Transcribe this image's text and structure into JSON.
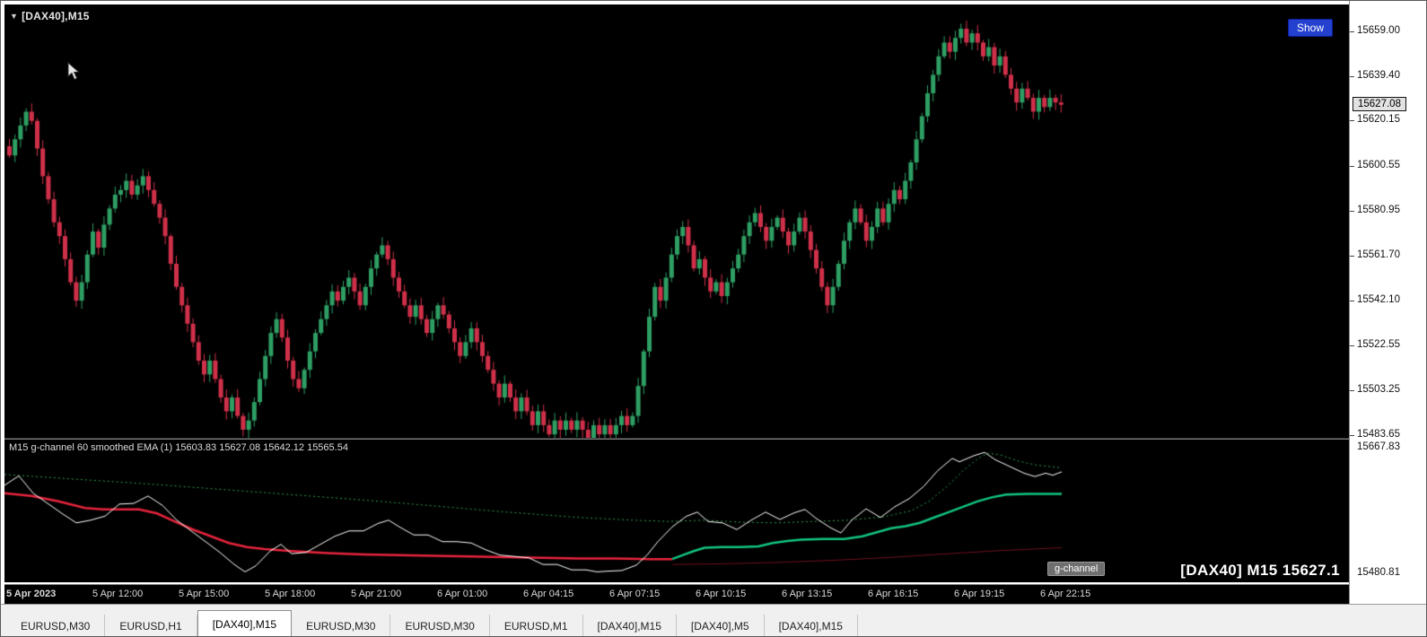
{
  "window": {
    "symbol_label": "[DAX40],M15"
  },
  "chart": {
    "show_button_label": "Show",
    "current_price_label": "15627.08",
    "current_price_value": 15627.08,
    "price_axis_ticks": [
      {
        "label": "15659.00",
        "value": 15659.0
      },
      {
        "label": "15639.40",
        "value": 15639.4
      },
      {
        "label": "15620.15",
        "value": 15620.15
      },
      {
        "label": "15600.55",
        "value": 15600.55
      },
      {
        "label": "15580.95",
        "value": 15580.95
      },
      {
        "label": "15561.70",
        "value": 15561.7
      },
      {
        "label": "15542.10",
        "value": 15542.1
      },
      {
        "label": "15522.55",
        "value": 15522.55
      },
      {
        "label": "15503.25",
        "value": 15503.25
      },
      {
        "label": "15483.65",
        "value": 15483.65
      }
    ]
  },
  "indicator": {
    "label": "M15 g-channel  60 smoothed EMA (1) 15603.83 15627.08 15642.12 15565.54",
    "axis_ticks": [
      {
        "label": "15667.83",
        "value": 15667.83
      },
      {
        "label": "15480.81",
        "value": 15480.81
      }
    ],
    "tooltip": "g-channel",
    "watermark": "[DAX40] M15 15627.1"
  },
  "time_axis": {
    "labels": [
      "5 Apr 2023",
      "5 Apr 12:00",
      "5 Apr 15:00",
      "5 Apr 18:00",
      "5 Apr 21:00",
      "6 Apr 01:00",
      "6 Apr 04:15",
      "6 Apr 07:15",
      "6 Apr 10:15",
      "6 Apr 13:15",
      "6 Apr 16:15",
      "6 Apr 19:15",
      "6 Apr 22:15"
    ],
    "x_start": 2,
    "x_step": 96
  },
  "tabs": {
    "active_index": 2,
    "items": [
      "EURUSD,M30",
      "EURUSD,H1",
      "[DAX40],M15",
      "EURUSD,M30",
      "EURUSD,M30",
      "EURUSD,M1",
      "[DAX40],M15",
      "[DAX40],M5",
      "[DAX40],M15"
    ]
  },
  "colors": {
    "background": "#000000",
    "axis_background": "#ffffff",
    "candle_up": "#2e9e63",
    "candle_down": "#cf3049",
    "accent_blue": "#2340cf",
    "text_light": "#e6e6e6"
  },
  "chart_data": {
    "main": {
      "type": "candlestick",
      "symbol": "[DAX40]",
      "timeframe": "M15",
      "note": "open of each bar equals previous close; highs/lows extend a few points beyond bodies",
      "ylim": [
        15482.5,
        15670.5
      ],
      "current_price": 15627.08,
      "closes": [
        15605,
        15612,
        15618,
        15624,
        15620,
        15608,
        15596,
        15586,
        15576,
        15570,
        15560,
        15550,
        15542,
        15550,
        15562,
        15572,
        15565,
        15575,
        15582,
        15588,
        15590,
        15594,
        15588,
        15592,
        15596,
        15590,
        15584,
        15578,
        15570,
        15558,
        15548,
        15540,
        15532,
        15524,
        15516,
        15510,
        15516,
        15508,
        15500,
        15494,
        15500,
        15492,
        15486,
        15490,
        15498,
        15508,
        15518,
        15528,
        15534,
        15526,
        15516,
        15508,
        15504,
        15512,
        15520,
        15528,
        15534,
        15540,
        15546,
        15542,
        15548,
        15552,
        15546,
        15540,
        15548,
        15556,
        15562,
        15566,
        15560,
        15552,
        15546,
        15540,
        15535,
        15540,
        15534,
        15528,
        15534,
        15540,
        15536,
        15530,
        15524,
        15518,
        15524,
        15530,
        15524,
        15518,
        15512,
        15506,
        15500,
        15506,
        15500,
        15494,
        15500,
        15494,
        15488,
        15494,
        15488,
        15484,
        15490,
        15486,
        15490,
        15486,
        15490,
        15486,
        15482,
        15488,
        15484,
        15488,
        15484,
        15488,
        15492,
        15488,
        15492,
        15505,
        15520,
        15535,
        15548,
        15542,
        15552,
        15562,
        15570,
        15574,
        15566,
        15556,
        15560,
        15552,
        15546,
        15550,
        15544,
        15550,
        15556,
        15562,
        15570,
        15576,
        15580,
        15574,
        15568,
        15574,
        15578,
        15572,
        15566,
        15572,
        15578,
        15572,
        15564,
        15556,
        15548,
        15540,
        15548,
        15558,
        15568,
        15576,
        15582,
        15576,
        15568,
        15574,
        15582,
        15576,
        15584,
        15590,
        15586,
        15594,
        15602,
        15612,
        15622,
        15632,
        15640,
        15648,
        15654,
        15650,
        15656,
        15660,
        15654,
        15658,
        15654,
        15648,
        15652,
        15644,
        15648,
        15640,
        15634,
        15628,
        15634,
        15630,
        15624,
        15630,
        15626,
        15630,
        15628,
        15627
      ],
      "render": {
        "x_start": 5,
        "x_step": 6.2,
        "body_width": 5,
        "price_top": 15670.5,
        "price_bottom": 15482.5
      }
    },
    "indicator": {
      "type": "line",
      "title": "g-channel + 60 smoothed EMA",
      "ylim": [
        15467.5,
        15680
      ],
      "render": {
        "price_top": 15680,
        "price_bottom": 15467.5
      },
      "series": [
        {
          "name": "smoothed-ema-60",
          "color": "#2f9e4f",
          "width": 1,
          "style": "dotted",
          "points": [
            [
              0,
              15628
            ],
            [
              80,
              15621
            ],
            [
              160,
              15614
            ],
            [
              240,
              15606
            ],
            [
              320,
              15598
            ],
            [
              400,
              15590
            ],
            [
              480,
              15581
            ],
            [
              560,
              15572
            ],
            [
              640,
              15564
            ],
            [
              700,
              15560
            ],
            [
              740,
              15558
            ],
            [
              780,
              15560
            ],
            [
              820,
              15557
            ],
            [
              860,
              15556
            ],
            [
              900,
              15558
            ],
            [
              940,
              15560
            ],
            [
              980,
              15565
            ],
            [
              1010,
              15574
            ],
            [
              1030,
              15588
            ],
            [
              1050,
              15610
            ],
            [
              1070,
              15636
            ],
            [
              1085,
              15652
            ],
            [
              1096,
              15660
            ],
            [
              1110,
              15657
            ],
            [
              1130,
              15648
            ],
            [
              1150,
              15642
            ],
            [
              1178,
              15638
            ]
          ]
        },
        {
          "name": "g-channel-lower-red",
          "color": "#e6243c",
          "width": 2.5,
          "style": "solid",
          "points": [
            [
              0,
              15600
            ],
            [
              30,
              15596
            ],
            [
              60,
              15588
            ],
            [
              90,
              15578
            ],
            [
              110,
              15576
            ],
            [
              130,
              15576
            ],
            [
              150,
              15576
            ],
            [
              170,
              15570
            ],
            [
              190,
              15558
            ],
            [
              210,
              15546
            ],
            [
              230,
              15536
            ],
            [
              250,
              15526
            ],
            [
              270,
              15520
            ],
            [
              290,
              15517
            ],
            [
              320,
              15514
            ],
            [
              360,
              15511
            ],
            [
              400,
              15509
            ],
            [
              440,
              15508
            ],
            [
              480,
              15507
            ],
            [
              520,
              15506
            ],
            [
              560,
              15505
            ],
            [
              600,
              15504
            ],
            [
              640,
              15503
            ],
            [
              680,
              15503
            ],
            [
              720,
              15502
            ],
            [
              744,
              15502
            ]
          ]
        },
        {
          "name": "g-channel-upper-green",
          "color": "#12c47e",
          "width": 2.5,
          "style": "solid",
          "points": [
            [
              744,
              15502
            ],
            [
              756,
              15508
            ],
            [
              768,
              15514
            ],
            [
              780,
              15519
            ],
            [
              800,
              15520
            ],
            [
              820,
              15520
            ],
            [
              840,
              15521
            ],
            [
              856,
              15526
            ],
            [
              872,
              15529
            ],
            [
              888,
              15531
            ],
            [
              912,
              15532
            ],
            [
              936,
              15532
            ],
            [
              956,
              15536
            ],
            [
              972,
              15542
            ],
            [
              988,
              15548
            ],
            [
              1004,
              15551
            ],
            [
              1020,
              15556
            ],
            [
              1036,
              15564
            ],
            [
              1052,
              15572
            ],
            [
              1068,
              15580
            ],
            [
              1084,
              15588
            ],
            [
              1100,
              15594
            ],
            [
              1116,
              15598
            ],
            [
              1140,
              15599
            ],
            [
              1178,
              15599
            ]
          ]
        },
        {
          "name": "lower-band-dark-red",
          "color": "#6e1220",
          "width": 1,
          "style": "solid",
          "points": [
            [
              744,
              15494
            ],
            [
              800,
              15495
            ],
            [
              860,
              15497
            ],
            [
              920,
              15500
            ],
            [
              980,
              15504
            ],
            [
              1040,
              15509
            ],
            [
              1100,
              15514
            ],
            [
              1178,
              15519
            ]
          ]
        },
        {
          "name": "price-line-white",
          "color": "#ffffff",
          "width": 1,
          "style": "solid",
          "points": [
            [
              0,
              15612
            ],
            [
              16,
              15626
            ],
            [
              32,
              15600
            ],
            [
              48,
              15585
            ],
            [
              64,
              15570
            ],
            [
              80,
              15556
            ],
            [
              96,
              15560
            ],
            [
              112,
              15566
            ],
            [
              128,
              15584
            ],
            [
              144,
              15585
            ],
            [
              160,
              15596
            ],
            [
              176,
              15582
            ],
            [
              192,
              15560
            ],
            [
              208,
              15544
            ],
            [
              224,
              15528
            ],
            [
              240,
              15512
            ],
            [
              256,
              15494
            ],
            [
              268,
              15483
            ],
            [
              280,
              15492
            ],
            [
              296,
              15514
            ],
            [
              308,
              15524
            ],
            [
              320,
              15510
            ],
            [
              336,
              15512
            ],
            [
              352,
              15524
            ],
            [
              368,
              15536
            ],
            [
              384,
              15544
            ],
            [
              400,
              15544
            ],
            [
              416,
              15555
            ],
            [
              428,
              15560
            ],
            [
              440,
              15550
            ],
            [
              456,
              15538
            ],
            [
              472,
              15538
            ],
            [
              488,
              15528
            ],
            [
              504,
              15528
            ],
            [
              520,
              15526
            ],
            [
              536,
              15516
            ],
            [
              552,
              15508
            ],
            [
              568,
              15506
            ],
            [
              584,
              15504
            ],
            [
              600,
              15494
            ],
            [
              616,
              15494
            ],
            [
              632,
              15486
            ],
            [
              648,
              15486
            ],
            [
              660,
              15483
            ],
            [
              672,
              15484
            ],
            [
              688,
              15485
            ],
            [
              704,
              15493
            ],
            [
              716,
              15508
            ],
            [
              728,
              15528
            ],
            [
              744,
              15550
            ],
            [
              760,
              15566
            ],
            [
              772,
              15572
            ],
            [
              784,
              15558
            ],
            [
              800,
              15556
            ],
            [
              816,
              15546
            ],
            [
              832,
              15560
            ],
            [
              848,
              15572
            ],
            [
              864,
              15561
            ],
            [
              880,
              15571
            ],
            [
              892,
              15576
            ],
            [
              904,
              15563
            ],
            [
              920,
              15549
            ],
            [
              932,
              15541
            ],
            [
              944,
              15560
            ],
            [
              960,
              15577
            ],
            [
              976,
              15564
            ],
            [
              992,
              15580
            ],
            [
              1008,
              15592
            ],
            [
              1024,
              15610
            ],
            [
              1040,
              15634
            ],
            [
              1056,
              15652
            ],
            [
              1064,
              15647
            ],
            [
              1080,
              15656
            ],
            [
              1092,
              15661
            ],
            [
              1104,
              15650
            ],
            [
              1120,
              15640
            ],
            [
              1136,
              15630
            ],
            [
              1148,
              15625
            ],
            [
              1160,
              15630
            ],
            [
              1168,
              15627
            ],
            [
              1178,
              15632
            ]
          ]
        }
      ]
    }
  }
}
